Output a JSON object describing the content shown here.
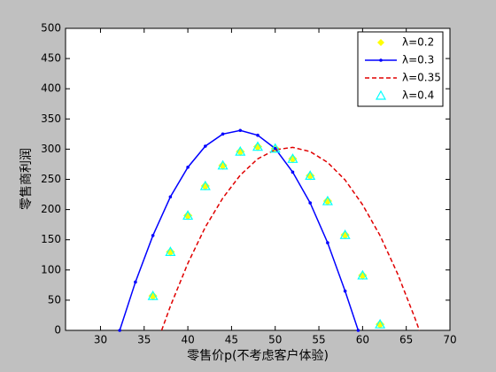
{
  "chart_data": {
    "type": "line",
    "xlabel": "零售价p(不考虑客户体验)",
    "ylabel": "零售商利润",
    "xlim": [
      26,
      70
    ],
    "xticks": [
      30,
      35,
      40,
      45,
      50,
      55,
      60,
      65,
      70
    ],
    "ylim": [
      0,
      500
    ],
    "yticks": [
      0,
      50,
      100,
      150,
      200,
      250,
      300,
      350,
      400,
      450,
      500
    ],
    "legend_loc": "upper right",
    "series": [
      {
        "name": "λ=0.2",
        "color": "#ffff00",
        "style": "diamond",
        "x": [
          36,
          38,
          40,
          42,
          44,
          46,
          48,
          50,
          52,
          54,
          56,
          58,
          60,
          62
        ],
        "values": [
          57,
          130,
          190,
          239,
          273,
          296,
          304,
          301,
          284,
          256,
          214,
          158,
          91,
          10
        ]
      },
      {
        "name": "λ=0.3",
        "color": "#0000ff",
        "style": "solid-dot",
        "x": [
          32.2,
          34,
          36,
          38,
          40,
          42,
          44,
          46,
          48,
          50,
          52,
          54,
          56,
          58,
          59.5
        ],
        "values": [
          0,
          80,
          157,
          221,
          270,
          305,
          325,
          331,
          323,
          301,
          262,
          211,
          145,
          65,
          0
        ]
      },
      {
        "name": "λ=0.35",
        "color": "#e00000",
        "style": "dashed",
        "x": [
          37,
          38,
          40,
          42,
          44,
          46,
          48,
          50,
          52,
          54,
          56,
          58,
          60,
          62,
          64,
          66,
          66.5
        ],
        "values": [
          0,
          40,
          111,
          171,
          219,
          257,
          284,
          299,
          303,
          296,
          278,
          249,
          208,
          157,
          94,
          20,
          0
        ]
      },
      {
        "name": "λ=0.4",
        "color": "#00ffff",
        "style": "triangle",
        "x": [
          36,
          38,
          40,
          42,
          44,
          46,
          48,
          50,
          52,
          54,
          56,
          58,
          60,
          62
        ],
        "values": [
          57,
          130,
          190,
          239,
          273,
          296,
          304,
          301,
          284,
          256,
          214,
          158,
          91,
          10
        ]
      }
    ]
  }
}
